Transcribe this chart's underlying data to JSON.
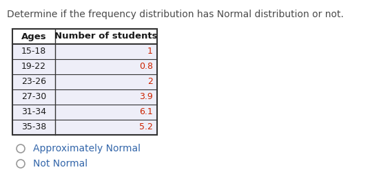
{
  "title": "Determine if the frequency distribution has Normal distribution or not.",
  "title_color": "#4a4a4a",
  "title_fontsize": 10.0,
  "col_headers": [
    "Ages",
    "Number of students"
  ],
  "rows": [
    [
      "15-18",
      "1"
    ],
    [
      "19-22",
      "0.8"
    ],
    [
      "23-26",
      "2"
    ],
    [
      "27-30",
      "3.9"
    ],
    [
      "31-34",
      "6.1"
    ],
    [
      "35-38",
      "5.2"
    ]
  ],
  "header_bg": "#ffffff",
  "row_bg": "#eeeef8",
  "border_color": "#333333",
  "text_color": "#1a1a1a",
  "value_color": "#cc2200",
  "options": [
    "Approximately Normal",
    "Not Normal"
  ],
  "options_color": "#3366aa",
  "circle_color": "#999999"
}
